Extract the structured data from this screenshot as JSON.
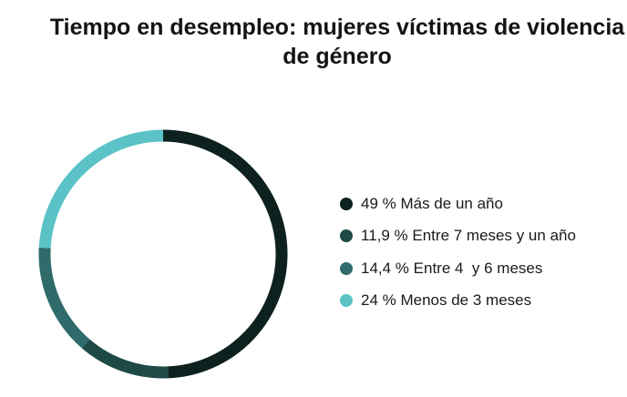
{
  "chart_data": {
    "type": "pie",
    "title": "Tiempo en desempleo: mujeres víctimas de violencia de género",
    "categories": [
      "Más de un año",
      "Entre 7 meses y un año",
      "Entre 4  y 6 meses",
      "Menos de 3 meses"
    ],
    "values": [
      49,
      11.9,
      14.4,
      24
    ],
    "colors": [
      "#0d211f",
      "#1e4a46",
      "#2f6b6b",
      "#5bc2c7"
    ],
    "legend_labels": [
      "49 % Más de un año",
      "11,9 % Entre 7 meses y un año",
      "14,4 % Entre 4  y 6 meses",
      "24 % Menos de 3 meses"
    ],
    "legend_position": "right",
    "style": "donut"
  }
}
